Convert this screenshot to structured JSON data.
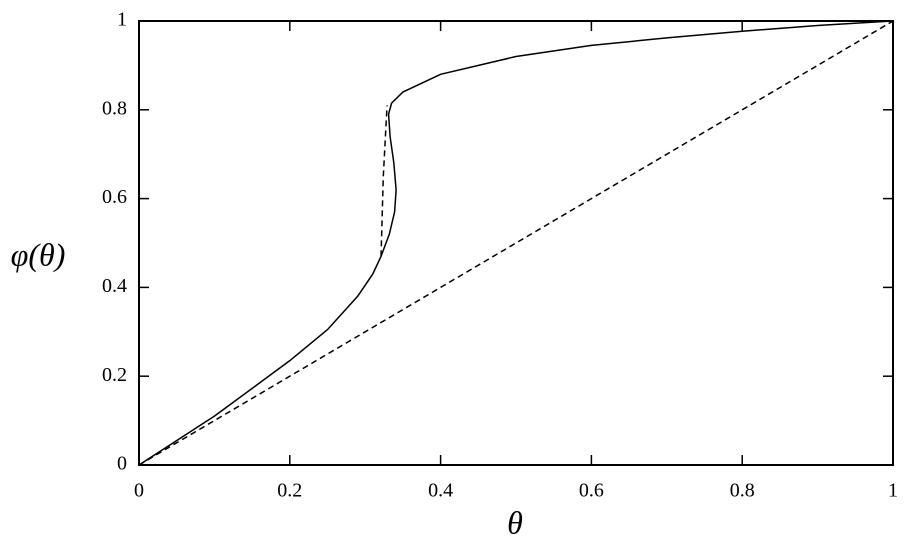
{
  "chart_data": {
    "type": "line",
    "xlabel": "θ",
    "ylabel": "φ(θ)",
    "xlim": [
      0,
      1
    ],
    "ylim": [
      0,
      1
    ],
    "xticks": [
      0,
      0.2,
      0.4,
      0.6,
      0.8,
      1
    ],
    "yticks": [
      0,
      0.2,
      0.4,
      0.6,
      0.8,
      1
    ],
    "series": [
      {
        "color": "#000000",
        "style": "solid",
        "x": [
          0,
          0.1,
          0.2,
          0.25,
          0.29,
          0.31,
          0.321,
          0.332,
          0.339,
          0.341,
          0.338,
          0.333,
          0.331,
          0.335,
          0.35,
          0.4,
          0.5,
          0.6,
          0.7,
          0.8,
          0.9,
          1
        ],
        "values": [
          0,
          0.11,
          0.235,
          0.305,
          0.38,
          0.43,
          0.47,
          0.52,
          0.57,
          0.62,
          0.68,
          0.74,
          0.79,
          0.815,
          0.84,
          0.88,
          0.92,
          0.945,
          0.962,
          0.977,
          0.99,
          1
        ]
      },
      {
        "color": "#000000",
        "style": "dashed",
        "x": [
          0.321,
          0.324,
          0.329
        ],
        "values": [
          0.47,
          0.65,
          0.81
        ]
      },
      {
        "color": "#000000",
        "style": "dashed",
        "x": [
          0,
          1
        ],
        "values": [
          0,
          1
        ]
      }
    ]
  }
}
